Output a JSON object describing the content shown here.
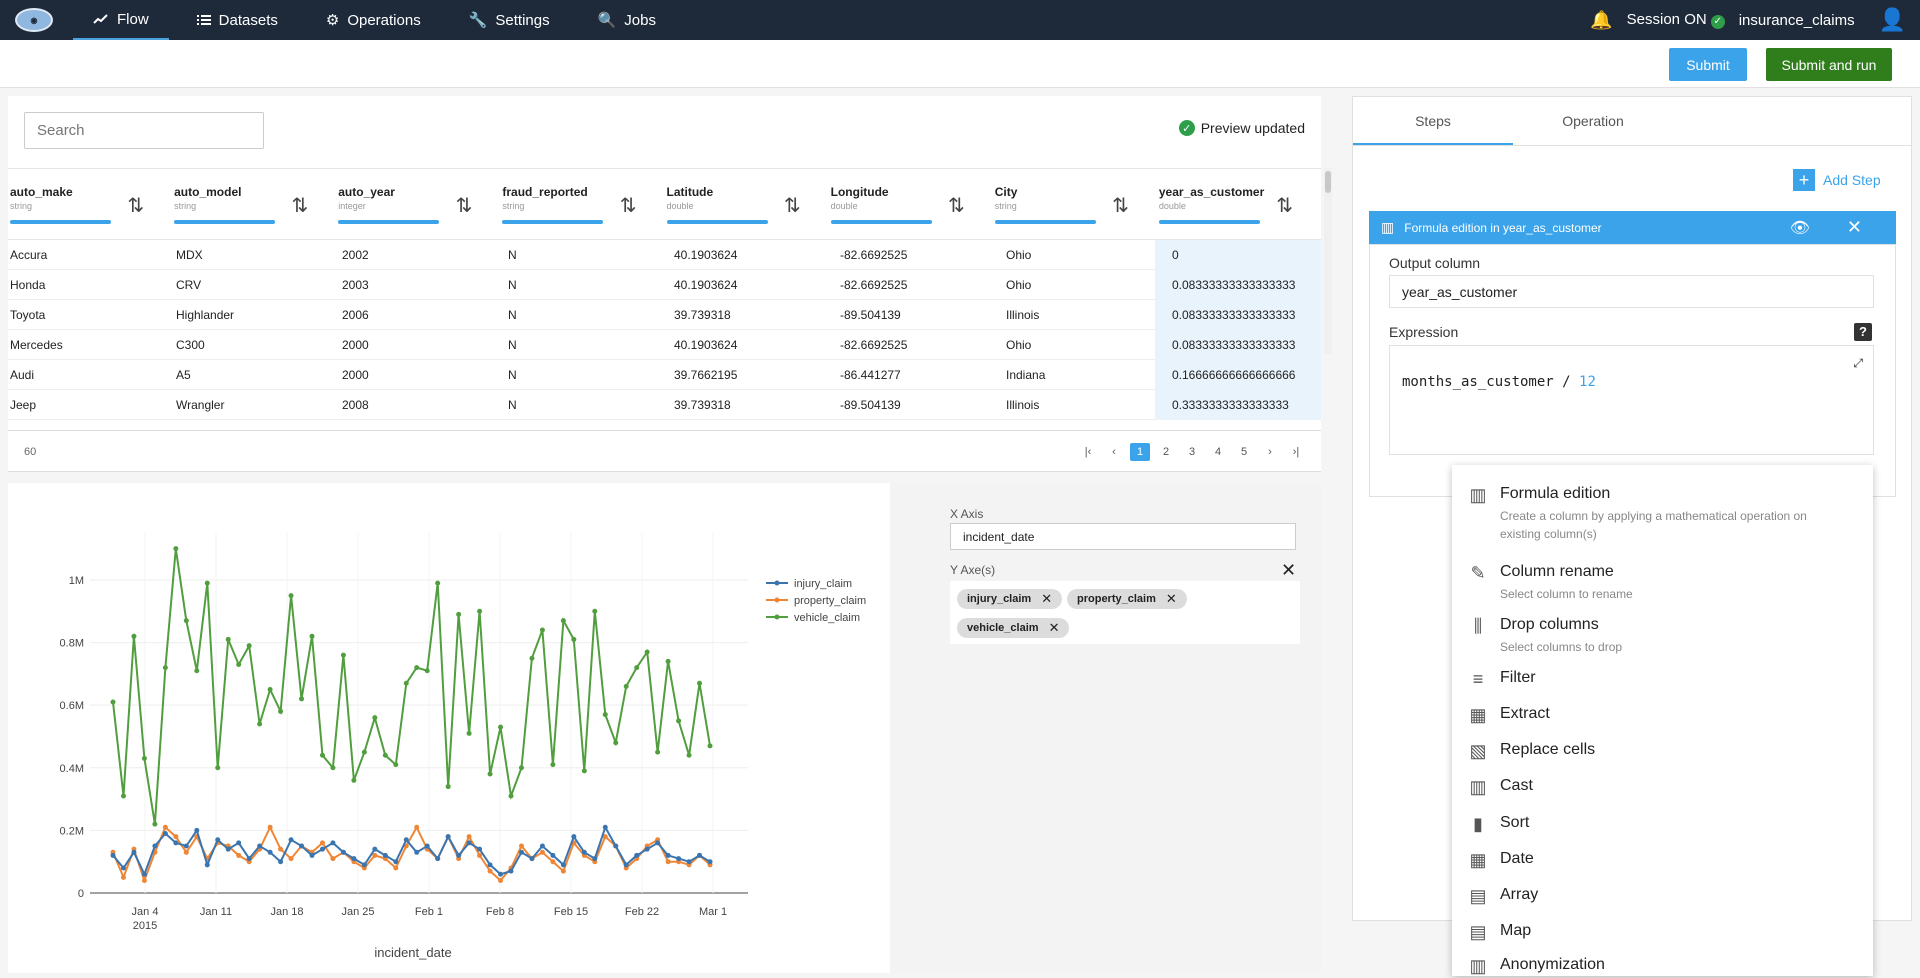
{
  "nav": {
    "items": [
      "Flow",
      "Datasets",
      "Operations",
      "Settings",
      "Jobs"
    ],
    "session_label": "Session ON",
    "project": "insurance_claims"
  },
  "actions": {
    "submit": "Submit",
    "submit_run": "Submit and run"
  },
  "table": {
    "search_placeholder": "Search",
    "preview_status": "Preview updated",
    "columns": [
      {
        "name": "auto_make",
        "type": "string"
      },
      {
        "name": "auto_model",
        "type": "string"
      },
      {
        "name": "auto_year",
        "type": "integer"
      },
      {
        "name": "fraud_reported",
        "type": "string"
      },
      {
        "name": "Latitude",
        "type": "double"
      },
      {
        "name": "Longitude",
        "type": "double"
      },
      {
        "name": "City",
        "type": "string"
      },
      {
        "name": "year_as_customer",
        "type": "double"
      }
    ],
    "rows": [
      [
        "Accura",
        "MDX",
        "2002",
        "N",
        "40.1903624",
        "-82.6692525",
        "Ohio",
        "0"
      ],
      [
        "Honda",
        "CRV",
        "2003",
        "N",
        "40.1903624",
        "-82.6692525",
        "Ohio",
        "0.08333333333333333"
      ],
      [
        "Toyota",
        "Highlander",
        "2006",
        "N",
        "39.739318",
        "-89.504139",
        "Illinois",
        "0.08333333333333333"
      ],
      [
        "Mercedes",
        "C300",
        "2000",
        "N",
        "40.1903624",
        "-82.6692525",
        "Ohio",
        "0.08333333333333333"
      ],
      [
        "Audi",
        "A5",
        "2000",
        "N",
        "39.7662195",
        "-86.441277",
        "Indiana",
        "0.16666666666666666"
      ],
      [
        "Jeep",
        "Wrangler",
        "2008",
        "N",
        "39.739318",
        "-89.504139",
        "Illinois",
        "0.3333333333333333"
      ]
    ],
    "row_count": "60",
    "pages": [
      "1",
      "2",
      "3",
      "4",
      "5"
    ],
    "active_page": "1"
  },
  "chart_controls": {
    "x_axis_label": "X Axis",
    "x_axis_value": "incident_date",
    "y_axes_label": "Y Axe(s)",
    "y_axes": [
      "injury_claim",
      "property_claim",
      "vehicle_claim"
    ]
  },
  "chart_data": {
    "type": "line",
    "xlabel": "incident_date",
    "ylabel": "",
    "x_tick_labels": [
      "Jan 4",
      "Jan 11",
      "Jan 18",
      "Jan 25",
      "Feb 1",
      "Feb 8",
      "Feb 15",
      "Feb 22",
      "Mar 1"
    ],
    "x_year_label": "2015",
    "y_tick_labels": [
      "0",
      "0.2M",
      "0.4M",
      "0.6M",
      "0.8M",
      "1M"
    ],
    "ylim": [
      0,
      1150000
    ],
    "legend_position": "top-right",
    "colors": {
      "injury_claim": "#3b75af",
      "property_claim": "#ef8636",
      "vehicle_claim": "#519e3e"
    },
    "series": [
      {
        "name": "injury_claim",
        "values": [
          120000,
          80000,
          130000,
          60000,
          150000,
          190000,
          160000,
          150000,
          200000,
          90000,
          170000,
          140000,
          160000,
          110000,
          150000,
          130000,
          100000,
          170000,
          150000,
          120000,
          140000,
          160000,
          130000,
          110000,
          90000,
          140000,
          120000,
          100000,
          170000,
          130000,
          150000,
          110000,
          180000,
          120000,
          160000,
          140000,
          90000,
          60000,
          70000,
          130000,
          110000,
          150000,
          120000,
          90000,
          180000,
          130000,
          110000,
          210000,
          150000,
          90000,
          120000,
          140000,
          160000,
          120000,
          110000,
          100000,
          120000,
          100000
        ]
      },
      {
        "name": "property_claim",
        "values": [
          130000,
          50000,
          140000,
          40000,
          130000,
          210000,
          180000,
          130000,
          180000,
          110000,
          160000,
          150000,
          120000,
          100000,
          140000,
          210000,
          140000,
          110000,
          150000,
          130000,
          160000,
          110000,
          130000,
          100000,
          80000,
          120000,
          110000,
          80000,
          150000,
          210000,
          140000,
          110000,
          180000,
          110000,
          180000,
          120000,
          70000,
          40000,
          80000,
          150000,
          110000,
          130000,
          100000,
          70000,
          160000,
          120000,
          100000,
          180000,
          150000,
          80000,
          110000,
          150000,
          170000,
          100000,
          100000,
          90000,
          120000,
          90000
        ]
      },
      {
        "name": "vehicle_claim",
        "values": [
          610000,
          310000,
          820000,
          430000,
          220000,
          720000,
          1100000,
          870000,
          710000,
          990000,
          400000,
          810000,
          730000,
          790000,
          540000,
          650000,
          580000,
          950000,
          620000,
          820000,
          440000,
          400000,
          760000,
          360000,
          450000,
          560000,
          440000,
          410000,
          670000,
          720000,
          710000,
          990000,
          340000,
          890000,
          510000,
          900000,
          380000,
          530000,
          310000,
          400000,
          750000,
          840000,
          410000,
          870000,
          810000,
          390000,
          900000,
          570000,
          480000,
          660000,
          720000,
          770000,
          450000,
          740000,
          550000,
          440000,
          670000,
          470000
        ]
      }
    ]
  },
  "right_panel": {
    "tabs": [
      "Steps",
      "Operation"
    ],
    "add_step": "Add Step",
    "step_title": "Formula edition in year_as_customer",
    "output_label": "Output column",
    "output_value": "year_as_customer",
    "expression_label": "Expression",
    "expression_text": "months_as_customer / ",
    "expression_num": "12",
    "menu": [
      {
        "title": "Formula edition",
        "desc": "Create a column by applying a mathematical operation on existing column(s)",
        "icon": "formula-icon"
      },
      {
        "title": "Column rename",
        "desc": "Select column to rename",
        "icon": "rename-icon"
      },
      {
        "title": "Drop columns",
        "desc": "Select columns to drop",
        "icon": "drop-columns-icon"
      },
      {
        "title": "Filter",
        "desc": "",
        "icon": "filter-icon"
      },
      {
        "title": "Extract",
        "desc": "",
        "icon": "extract-icon"
      },
      {
        "title": "Replace cells",
        "desc": "",
        "icon": "replace-icon"
      },
      {
        "title": "Cast",
        "desc": "",
        "icon": "cast-icon"
      },
      {
        "title": "Sort",
        "desc": "",
        "icon": "sort-icon"
      },
      {
        "title": "Date",
        "desc": "",
        "icon": "date-icon"
      },
      {
        "title": "Array",
        "desc": "",
        "icon": "array-icon"
      },
      {
        "title": "Map",
        "desc": "",
        "icon": "map-icon"
      },
      {
        "title": "Anonymization",
        "desc": "",
        "icon": "anonymization-icon"
      }
    ]
  }
}
